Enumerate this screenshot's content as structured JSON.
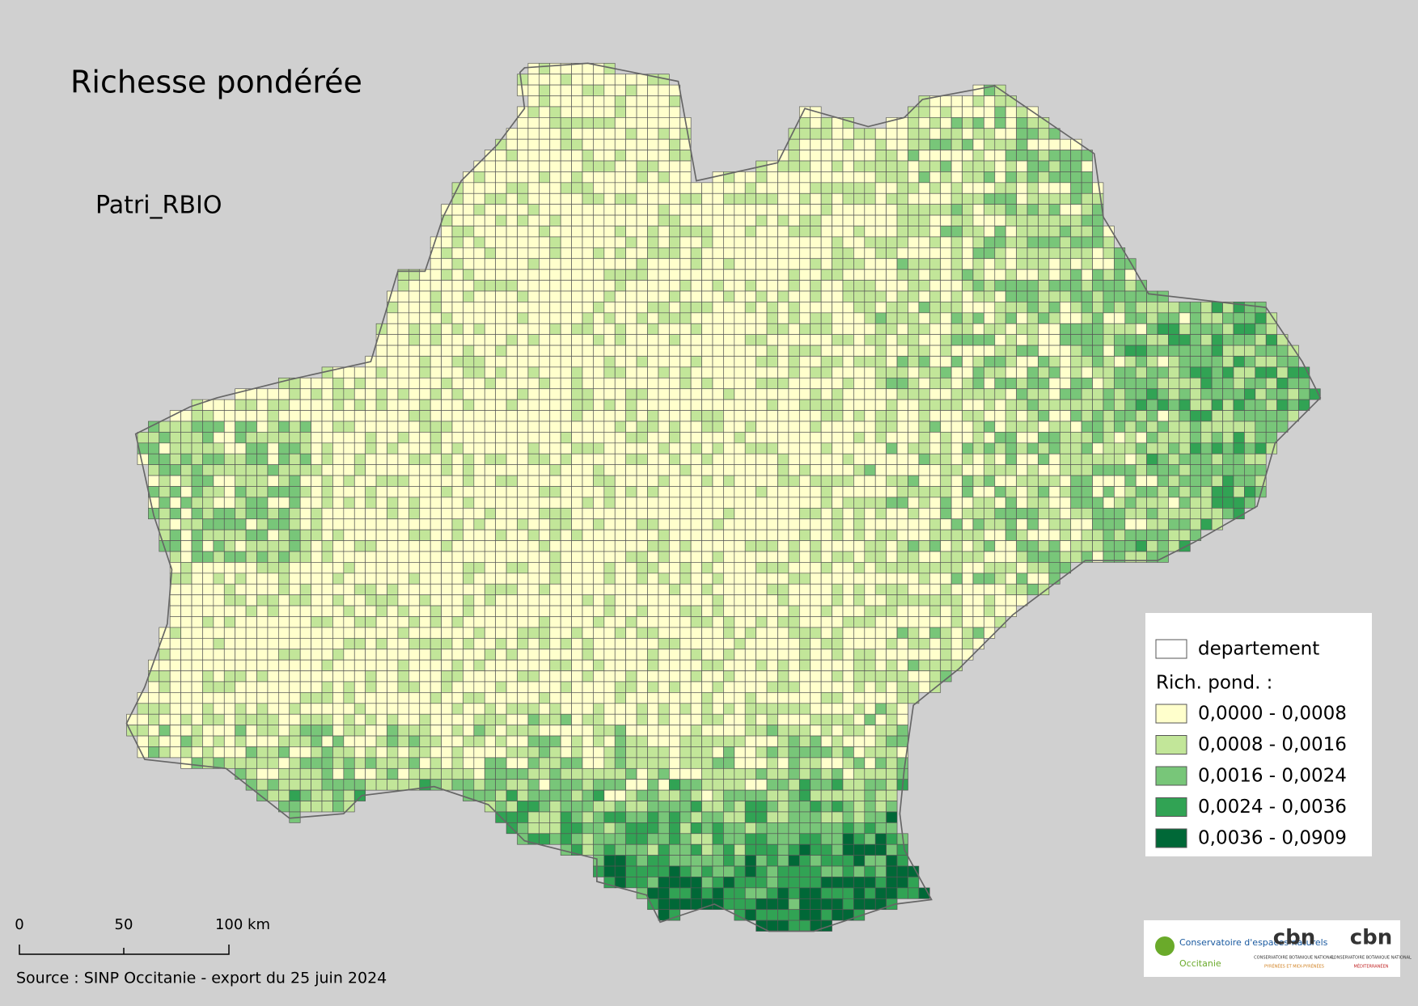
{
  "title": "Richesse pondérée",
  "subtitle": "Patri_RBIO",
  "legend": {
    "boundary_label": "departement",
    "heading": "Rich. pond. :",
    "classes": [
      {
        "label": "0,0000 - 0,0008",
        "color": "#ffffcc"
      },
      {
        "label": "0,0008 - 0,0016",
        "color": "#c2e699"
      },
      {
        "label": "0,0016 - 0,0024",
        "color": "#78c679"
      },
      {
        "label": "0,0024 - 0,0036",
        "color": "#31a354"
      },
      {
        "label": "0,0036 - 0,0909",
        "color": "#006837"
      }
    ]
  },
  "scale_bar": {
    "labels": [
      "0",
      "50",
      "100 km"
    ]
  },
  "source": "Source : SINP Occitanie - export du 25 juin 2024",
  "logos": {
    "cen_name": "Conservatoire d'espaces naturels",
    "cen_region": "Occitanie",
    "cbn1": "cbn",
    "cbn1_sub": "CONSERVATOIRE BOTANIQUE NATIONAL",
    "cbn1_region": "PYRÉNÉES ET MIDI-PYRÉNÉES",
    "cbn2": "cbn",
    "cbn2_sub": "CONSERVATOIRE BOTANIQUE NATIONAL",
    "cbn2_region": "MÉDITERRANÉEN"
  }
}
